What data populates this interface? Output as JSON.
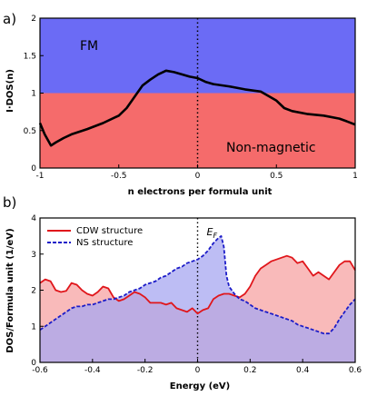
{
  "chart_data": [
    {
      "panel_label": "a)",
      "type": "area",
      "xlabel": "n electrons per formula unit",
      "ylabel": "I·DOS(n)",
      "xlim": [
        -1,
        1
      ],
      "ylim": [
        0,
        2
      ],
      "xticks": [
        "-1",
        "-0.5",
        "0",
        "0.5",
        "1"
      ],
      "yticks": [
        "0",
        "0.5",
        "1",
        "1.5",
        "2"
      ],
      "regions": [
        {
          "label": "FM",
          "from": 1,
          "to": 2,
          "color": "#6b6bf5"
        },
        {
          "label": "Non-magnetic",
          "from": 0,
          "to": 1,
          "color": "#f56b6b"
        }
      ],
      "vline_x": 0,
      "series": [
        {
          "color": "#000000",
          "x": [
            -1.0,
            -0.97,
            -0.93,
            -0.9,
            -0.85,
            -0.8,
            -0.7,
            -0.6,
            -0.5,
            -0.45,
            -0.4,
            -0.35,
            -0.3,
            -0.25,
            -0.2,
            -0.15,
            -0.1,
            -0.05,
            0.0,
            0.05,
            0.1,
            0.2,
            0.3,
            0.4,
            0.5,
            0.55,
            0.6,
            0.7,
            0.8,
            0.9,
            0.95,
            1.0
          ],
          "y": [
            0.6,
            0.45,
            0.3,
            0.34,
            0.4,
            0.45,
            0.52,
            0.6,
            0.7,
            0.8,
            0.95,
            1.1,
            1.18,
            1.25,
            1.3,
            1.28,
            1.25,
            1.22,
            1.2,
            1.15,
            1.12,
            1.09,
            1.05,
            1.02,
            0.9,
            0.8,
            0.76,
            0.72,
            0.7,
            0.66,
            0.62,
            0.58
          ]
        }
      ]
    },
    {
      "panel_label": "b)",
      "type": "area",
      "xlabel": "Energy (eV)",
      "ylabel": "DOS/Formula unit (1/eV)",
      "xlim": [
        -0.6,
        0.6
      ],
      "ylim": [
        0,
        4
      ],
      "xticks": [
        "-0.6",
        "-0.4",
        "-0.2",
        "0",
        "0.2",
        "0.4",
        "0.6"
      ],
      "yticks": [
        "0",
        "1",
        "2",
        "3",
        "4"
      ],
      "vline_x": 0,
      "vline_label": "E",
      "vline_label_sub": "F",
      "series": [
        {
          "name": "CDW structure",
          "color": "#e0161b",
          "fill": "#f7a3a3",
          "dash": "solid",
          "x": [
            -0.6,
            -0.58,
            -0.56,
            -0.54,
            -0.52,
            -0.5,
            -0.48,
            -0.46,
            -0.44,
            -0.42,
            -0.4,
            -0.38,
            -0.36,
            -0.34,
            -0.32,
            -0.3,
            -0.28,
            -0.26,
            -0.24,
            -0.22,
            -0.2,
            -0.18,
            -0.16,
            -0.14,
            -0.12,
            -0.1,
            -0.08,
            -0.06,
            -0.04,
            -0.02,
            0.0,
            0.02,
            0.04,
            0.06,
            0.08,
            0.1,
            0.12,
            0.14,
            0.16,
            0.18,
            0.2,
            0.22,
            0.24,
            0.26,
            0.28,
            0.3,
            0.32,
            0.34,
            0.36,
            0.38,
            0.4,
            0.42,
            0.44,
            0.46,
            0.48,
            0.5,
            0.52,
            0.54,
            0.56,
            0.58,
            0.6
          ],
          "y": [
            2.2,
            2.3,
            2.25,
            2.0,
            1.95,
            1.98,
            2.2,
            2.15,
            2.0,
            1.9,
            1.85,
            1.95,
            2.1,
            2.05,
            1.8,
            1.7,
            1.75,
            1.85,
            1.95,
            1.9,
            1.8,
            1.65,
            1.65,
            1.65,
            1.6,
            1.65,
            1.5,
            1.45,
            1.4,
            1.5,
            1.35,
            1.45,
            1.5,
            1.75,
            1.85,
            1.9,
            1.9,
            1.85,
            1.8,
            1.9,
            2.1,
            2.4,
            2.6,
            2.7,
            2.8,
            2.85,
            2.9,
            2.95,
            2.9,
            2.75,
            2.8,
            2.6,
            2.4,
            2.5,
            2.4,
            2.3,
            2.5,
            2.7,
            2.8,
            2.8,
            2.55
          ]
        },
        {
          "name": "NS structure",
          "color": "#1c1cc8",
          "fill": "#a7a7f0",
          "dash": "dashed",
          "x": [
            -0.6,
            -0.58,
            -0.56,
            -0.54,
            -0.52,
            -0.5,
            -0.48,
            -0.46,
            -0.44,
            -0.42,
            -0.4,
            -0.38,
            -0.36,
            -0.34,
            -0.32,
            -0.3,
            -0.28,
            -0.26,
            -0.24,
            -0.22,
            -0.2,
            -0.18,
            -0.16,
            -0.14,
            -0.12,
            -0.1,
            -0.08,
            -0.06,
            -0.04,
            -0.02,
            0.0,
            0.02,
            0.04,
            0.06,
            0.08,
            0.09,
            0.1,
            0.11,
            0.12,
            0.14,
            0.16,
            0.18,
            0.2,
            0.22,
            0.24,
            0.26,
            0.28,
            0.3,
            0.32,
            0.34,
            0.36,
            0.38,
            0.4,
            0.42,
            0.44,
            0.46,
            0.48,
            0.5,
            0.52,
            0.54,
            0.56,
            0.58,
            0.6
          ],
          "y": [
            0.9,
            1.0,
            1.1,
            1.2,
            1.3,
            1.4,
            1.5,
            1.55,
            1.55,
            1.6,
            1.6,
            1.65,
            1.7,
            1.75,
            1.75,
            1.8,
            1.85,
            1.95,
            2.0,
            2.05,
            2.15,
            2.2,
            2.25,
            2.35,
            2.4,
            2.5,
            2.6,
            2.65,
            2.75,
            2.8,
            2.85,
            2.95,
            3.1,
            3.3,
            3.45,
            3.5,
            3.2,
            2.4,
            2.1,
            1.9,
            1.75,
            1.7,
            1.6,
            1.5,
            1.45,
            1.4,
            1.35,
            1.3,
            1.25,
            1.2,
            1.15,
            1.05,
            1.0,
            0.95,
            0.9,
            0.85,
            0.8,
            0.8,
            0.95,
            1.2,
            1.4,
            1.6,
            1.75
          ]
        }
      ]
    }
  ]
}
